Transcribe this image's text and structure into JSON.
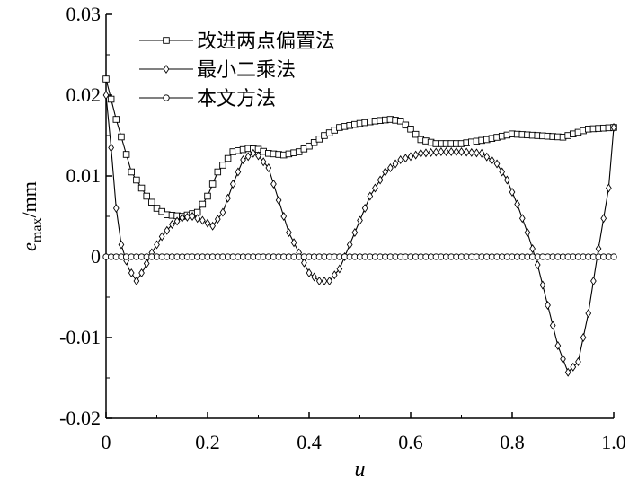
{
  "chart_data": {
    "type": "line",
    "xlabel": "u",
    "ylabel_main": "e",
    "ylabel_sub": "max",
    "ylabel_unit": "/mm",
    "xlim": [
      0,
      1.0
    ],
    "ylim": [
      -0.02,
      0.03
    ],
    "xticks": [
      "0",
      "0.2",
      "0.4",
      "0.6",
      "0.8",
      "1.0"
    ],
    "xtick_values": [
      0,
      0.2,
      0.4,
      0.6,
      0.8,
      1.0
    ],
    "yticks": [
      "0.03",
      "0.02",
      "0.01",
      "0",
      "-0.01",
      "-0.02"
    ],
    "ytick_values": [
      0.03,
      0.02,
      0.01,
      0,
      -0.01,
      -0.02
    ],
    "grid": false,
    "legend_position": "top-left",
    "series": [
      {
        "name": "改进两点偏置法",
        "marker": "square",
        "x": [
          0,
          0.02,
          0.05,
          0.08,
          0.1,
          0.12,
          0.15,
          0.18,
          0.2,
          0.22,
          0.25,
          0.28,
          0.3,
          0.32,
          0.35,
          0.38,
          0.4,
          0.43,
          0.46,
          0.5,
          0.53,
          0.56,
          0.58,
          0.6,
          0.62,
          0.65,
          0.7,
          0.75,
          0.8,
          0.85,
          0.9,
          0.95,
          1.0
        ],
        "values": [
          0.022,
          0.017,
          0.0105,
          0.0075,
          0.006,
          0.0052,
          0.005,
          0.0055,
          0.0075,
          0.0105,
          0.013,
          0.0134,
          0.0133,
          0.0128,
          0.0126,
          0.013,
          0.0137,
          0.015,
          0.016,
          0.0165,
          0.0168,
          0.017,
          0.0168,
          0.0158,
          0.0145,
          0.014,
          0.014,
          0.0145,
          0.0152,
          0.015,
          0.0148,
          0.0158,
          0.016
        ]
      },
      {
        "name": "最小二乘法",
        "marker": "diamond",
        "x": [
          0,
          0.01,
          0.02,
          0.03,
          0.045,
          0.06,
          0.075,
          0.09,
          0.11,
          0.13,
          0.15,
          0.17,
          0.19,
          0.21,
          0.23,
          0.25,
          0.27,
          0.29,
          0.3,
          0.32,
          0.34,
          0.36,
          0.38,
          0.4,
          0.42,
          0.44,
          0.46,
          0.48,
          0.5,
          0.52,
          0.55,
          0.58,
          0.62,
          0.66,
          0.7,
          0.74,
          0.77,
          0.79,
          0.81,
          0.83,
          0.85,
          0.87,
          0.89,
          0.91,
          0.93,
          0.95,
          0.97,
          0.99,
          1.0
        ],
        "values": [
          0.02,
          0.0135,
          0.006,
          0.0015,
          -0.0015,
          -0.003,
          -0.0015,
          0.0005,
          0.0025,
          0.004,
          0.0048,
          0.005,
          0.0045,
          0.0038,
          0.0055,
          0.009,
          0.012,
          0.0128,
          0.0125,
          0.011,
          0.007,
          0.003,
          0.0005,
          -0.002,
          -0.003,
          -0.003,
          -0.0015,
          0.0015,
          0.0045,
          0.0075,
          0.0105,
          0.012,
          0.0128,
          0.013,
          0.013,
          0.0128,
          0.0115,
          0.0095,
          0.0065,
          0.003,
          -0.001,
          -0.006,
          -0.011,
          -0.0143,
          -0.013,
          -0.007,
          0.001,
          0.0085,
          0.016
        ]
      },
      {
        "name": "本文方法",
        "marker": "circle",
        "x": [
          0,
          1.0
        ],
        "values": [
          0,
          0
        ]
      }
    ]
  }
}
